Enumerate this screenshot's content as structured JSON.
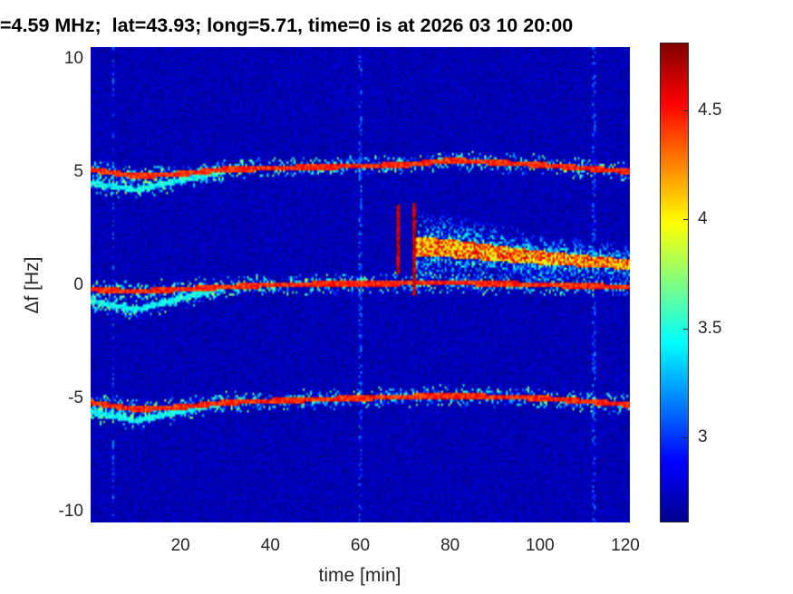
{
  "chart_data": {
    "type": "heatmap",
    "title": "=4.59 MHz;  lat=43.93; long=5.71, time=0 is at 2026 03 10 20:00",
    "xlabel": "time [min]",
    "ylabel": "Δf [Hz]",
    "xlim": [
      0,
      120
    ],
    "ylim": [
      -10.5,
      10.5
    ],
    "xticks": [
      20,
      40,
      60,
      80,
      100,
      120
    ],
    "yticks": [
      10,
      5,
      0,
      -5,
      -10
    ],
    "colormap": "jet",
    "clim": [
      2.61,
      4.81
    ],
    "colorbar_ticks": [
      4.5,
      4,
      3.5,
      3
    ],
    "background_level": 2.65,
    "traces": [
      {
        "t": [
          0,
          10,
          20,
          30,
          50,
          70,
          80,
          90,
          100,
          120
        ],
        "f": [
          5.1,
          4.8,
          4.9,
          5.1,
          5.2,
          5.3,
          5.5,
          5.4,
          5.3,
          5.0
        ],
        "level": 4.6
      },
      {
        "t": [
          0,
          10,
          20,
          30
        ],
        "f": [
          4.5,
          4.2,
          4.6,
          5.0
        ],
        "level": 3.6
      },
      {
        "t": [
          0,
          10,
          20,
          40,
          60,
          80,
          100,
          120
        ],
        "f": [
          -0.2,
          -0.3,
          -0.2,
          0.0,
          0.05,
          0.1,
          0.0,
          -0.1
        ],
        "level": 4.6
      },
      {
        "t": [
          0,
          10,
          20,
          30
        ],
        "f": [
          -0.7,
          -1.1,
          -0.6,
          -0.1
        ],
        "level": 3.6
      },
      {
        "t": [
          0,
          10,
          20,
          30,
          60,
          80,
          100,
          120
        ],
        "f": [
          -5.2,
          -5.5,
          -5.4,
          -5.2,
          -5.0,
          -4.9,
          -5.0,
          -5.3
        ],
        "level": 4.6
      },
      {
        "t": [
          0,
          10,
          20,
          30
        ],
        "f": [
          -5.6,
          -6.0,
          -5.6,
          -5.2
        ],
        "level": 3.6
      }
    ],
    "burst": {
      "spikes": [
        {
          "t": 68.5,
          "f": [
            0.5,
            3.5
          ]
        },
        {
          "t": 72,
          "f": [
            -0.5,
            3.6
          ]
        }
      ],
      "t": [
        72,
        80,
        100,
        120
      ],
      "center": [
        1.7,
        1.6,
        1.2,
        0.9
      ],
      "halfwidth": [
        1.8,
        1.6,
        1.2,
        0.9
      ],
      "level": 4.5
    },
    "vertical_lines_t": [
      5,
      60,
      112
    ]
  }
}
